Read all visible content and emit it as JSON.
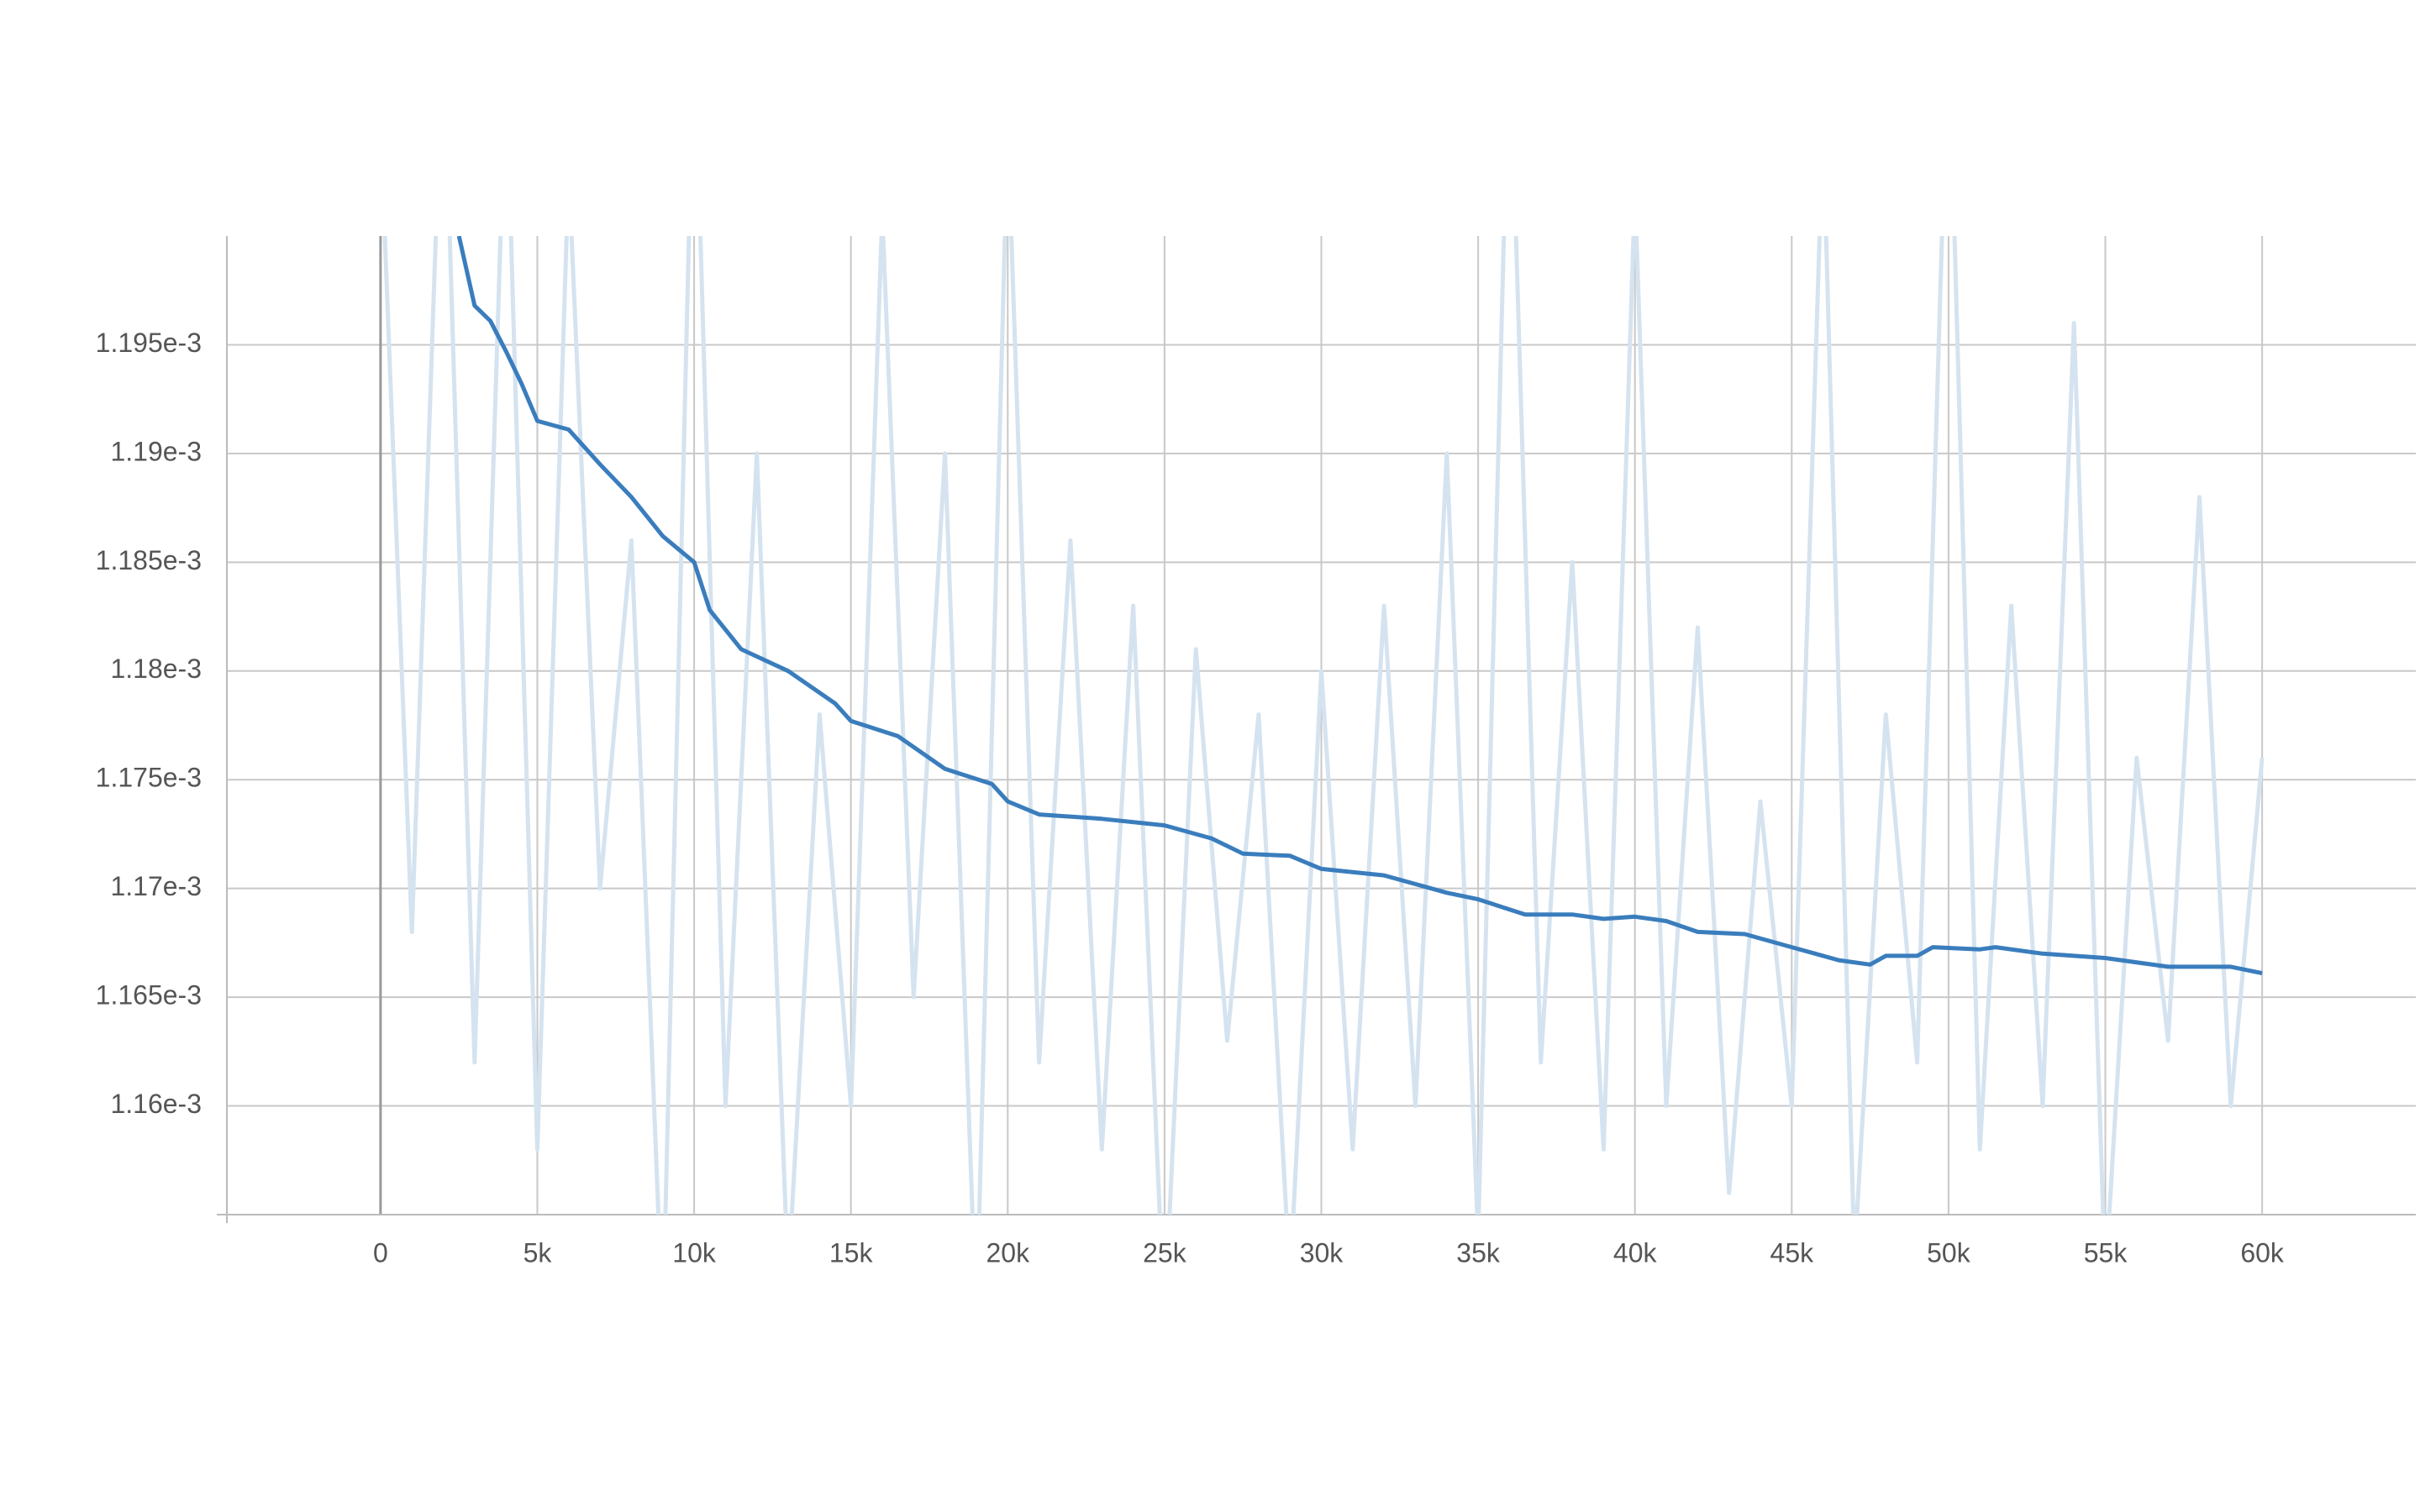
{
  "chart_data": {
    "type": "line",
    "x": [
      0,
      1000,
      2000,
      3000,
      4000,
      5000,
      6000,
      7000,
      8000,
      9000,
      10000,
      11000,
      12000,
      13000,
      14000,
      15000,
      16000,
      17000,
      18000,
      19000,
      20000,
      21000,
      22000,
      23000,
      24000,
      25000,
      26000,
      27000,
      28000,
      29000,
      30000,
      31000,
      32000,
      33000,
      34000,
      35000,
      36000,
      37000,
      38000,
      39000,
      40000,
      41000,
      42000,
      43000,
      44000,
      45000,
      46000,
      47000,
      48000,
      49000,
      50000,
      51000,
      52000,
      53000,
      54000,
      55000,
      56000,
      57000,
      58000,
      59000,
      60000
    ],
    "series": [
      {
        "color": "#d4e3ef",
        "values": [
          0.001205,
          0.001168,
          0.00121,
          0.001162,
          0.001208,
          0.001158,
          0.001203,
          0.00117,
          0.001186,
          0.00115,
          0.00121,
          0.00116,
          0.00119,
          0.001152,
          0.001178,
          0.00116,
          0.001201,
          0.001165,
          0.00119,
          0.00115,
          0.001205,
          0.001162,
          0.001186,
          0.001158,
          0.001183,
          0.00115,
          0.001181,
          0.001163,
          0.001178,
          0.001152,
          0.00118,
          0.001158,
          0.001183,
          0.00116,
          0.00119,
          0.001154,
          0.00121,
          0.001162,
          0.001185,
          0.001158,
          0.001202,
          0.00116,
          0.001182,
          0.001156,
          0.001174,
          0.00116,
          0.001205,
          0.001153,
          0.001178,
          0.001162,
          0.00121,
          0.001158,
          0.001183,
          0.00116,
          0.001196,
          0.001152,
          0.001176,
          0.001163,
          0.001188,
          0.00116,
          0.001176
        ]
      },
      {
        "color": "#3a7dbd",
        "x": [
          2500,
          3000,
          3500,
          4000,
          4500,
          5000,
          6000,
          7000,
          8000,
          9000,
          10000,
          10500,
          11500,
          13000,
          14500,
          15000,
          16500,
          18000,
          19500,
          20000,
          21000,
          23000,
          25000,
          26500,
          27500,
          29000,
          30000,
          32000,
          34000,
          35000,
          36500,
          38000,
          39000,
          40000,
          41000,
          42000,
          43500,
          45000,
          46500,
          47500,
          48000,
          49000,
          49500,
          51000,
          51500,
          53000,
          55000,
          57000,
          59000,
          60000
        ],
        "values": [
          0.0012,
          0.0011968,
          0.0011961,
          0.0011947,
          0.0011932,
          0.0011915,
          0.0011911,
          0.0011895,
          0.001188,
          0.0011862,
          0.001185,
          0.0011828,
          0.001181,
          0.00118,
          0.0011785,
          0.0011777,
          0.001177,
          0.0011755,
          0.0011748,
          0.001174,
          0.0011734,
          0.0011732,
          0.0011729,
          0.0011723,
          0.0011716,
          0.0011715,
          0.0011709,
          0.0011706,
          0.0011698,
          0.0011695,
          0.0011688,
          0.0011688,
          0.0011686,
          0.0011687,
          0.0011685,
          0.001168,
          0.0011679,
          0.0011673,
          0.0011667,
          0.0011665,
          0.0011669,
          0.0011669,
          0.0011673,
          0.0011672,
          0.0011673,
          0.001167,
          0.0011668,
          0.0011664,
          0.0011664,
          0.0011661
        ]
      }
    ],
    "xlim": [
      -4900,
      64900
    ],
    "ylim": [
      0.001155,
      0.0012
    ],
    "xticks": [
      0,
      {
        "value": 5000,
        "label": "5k"
      },
      {
        "value": 10000,
        "label": "10k"
      },
      {
        "value": 15000,
        "label": "15k"
      },
      {
        "value": 20000,
        "label": "20k"
      },
      {
        "value": 25000,
        "label": "25k"
      },
      {
        "value": 30000,
        "label": "30k"
      },
      {
        "value": 35000,
        "label": "35k"
      },
      {
        "value": 40000,
        "label": "40k"
      },
      {
        "value": 45000,
        "label": "45k"
      },
      {
        "value": 50000,
        "label": "50k"
      },
      {
        "value": 55000,
        "label": "55k"
      },
      {
        "value": 60000,
        "label": "60k"
      }
    ],
    "yticks": [
      {
        "value": 0.00116,
        "label": "1.16e-3"
      },
      {
        "value": 0.001165,
        "label": "1.165e-3"
      },
      {
        "value": 0.00117,
        "label": "1.17e-3"
      },
      {
        "value": 0.001175,
        "label": "1.175e-3"
      },
      {
        "value": 0.00118,
        "label": "1.18e-3"
      },
      {
        "value": 0.001185,
        "label": "1.185e-3"
      },
      {
        "value": 0.00119,
        "label": "1.19e-3"
      },
      {
        "value": 0.001195,
        "label": "1.195e-3"
      }
    ],
    "grid": true
  }
}
